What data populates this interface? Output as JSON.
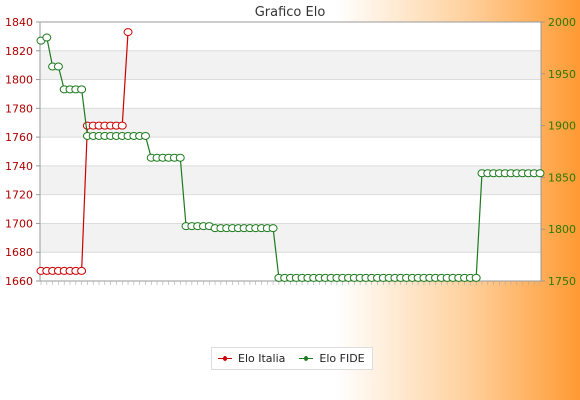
{
  "chart_data": {
    "type": "line",
    "title": "Grafico Elo",
    "left_axis": {
      "min": 1660,
      "max": 1840,
      "ticks": [
        1660,
        1680,
        1700,
        1720,
        1740,
        1760,
        1780,
        1800,
        1820,
        1840
      ],
      "color": "#cc0000"
    },
    "right_axis": {
      "min": 1750,
      "max": 2000,
      "ticks": [
        1750,
        1800,
        1850,
        1900,
        1950,
        2000
      ],
      "color": "#2a7a00"
    },
    "grid": true,
    "legend_position": "bottom",
    "series": [
      {
        "name": "Elo Italia",
        "axis": "left",
        "color": "#cc0000",
        "steps": [
          {
            "count": 8,
            "value": 1667
          },
          {
            "count": 7,
            "value": 1768
          },
          {
            "count": 1,
            "value": 1833
          }
        ]
      },
      {
        "name": "Elo FIDE",
        "axis": "right",
        "color": "#1e7a1e",
        "steps": [
          {
            "count": 1,
            "value": 1982
          },
          {
            "count": 1,
            "value": 1985
          },
          {
            "count": 2,
            "value": 1957
          },
          {
            "count": 4,
            "value": 1935
          },
          {
            "count": 11,
            "value": 1890
          },
          {
            "count": 6,
            "value": 1869
          },
          {
            "count": 5,
            "value": 1803
          },
          {
            "count": 11,
            "value": 1801
          },
          {
            "count": 35,
            "value": 1753
          },
          {
            "count": 11,
            "value": 1854
          }
        ]
      }
    ]
  }
}
